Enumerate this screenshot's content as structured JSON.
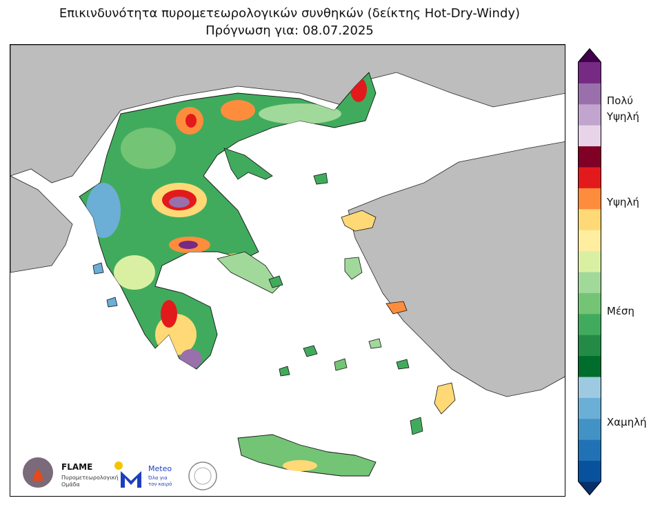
{
  "title": {
    "line1": "Επικινδυνότητα πυρομετεωρολογικών συνθηκών (δείκτης Hot-Dry-Windy)",
    "line2": "Πρόγνωση για: 08.07.2025"
  },
  "map": {
    "land_outside_color": "#bdbdbd",
    "sea_color": "#ffffff",
    "region": "Greece"
  },
  "colorbar": {
    "colors_bottom_to_top": [
      "#08306b",
      "#08519c",
      "#2171b5",
      "#4292c6",
      "#6baed6",
      "#9ecae1",
      "#006d2c",
      "#238b45",
      "#41ab5d",
      "#74c476",
      "#a1d99b",
      "#d9f0a3",
      "#ffeda0",
      "#fed976",
      "#fd8d3c",
      "#e31a1c",
      "#800026",
      "#e7d4e8",
      "#c2a5cf",
      "#9970ab",
      "#762a83",
      "#40004b"
    ],
    "labels": [
      {
        "id": "very-high-1",
        "text": "Πολύ"
      },
      {
        "id": "very-high-2",
        "text": "Υψηλή"
      },
      {
        "id": "high",
        "text": "Υψηλή"
      },
      {
        "id": "medium",
        "text": "Μέση"
      },
      {
        "id": "low",
        "text": "Χαμηλή"
      }
    ]
  },
  "logos": {
    "flame_title": "FLAME",
    "flame_sub1": "Πυρομετεωρολογική",
    "flame_sub2": "Ομάδα",
    "meteo_title": "Meteo",
    "meteo_sub1": "Όλα για",
    "meteo_sub2": "τον καιρό"
  }
}
